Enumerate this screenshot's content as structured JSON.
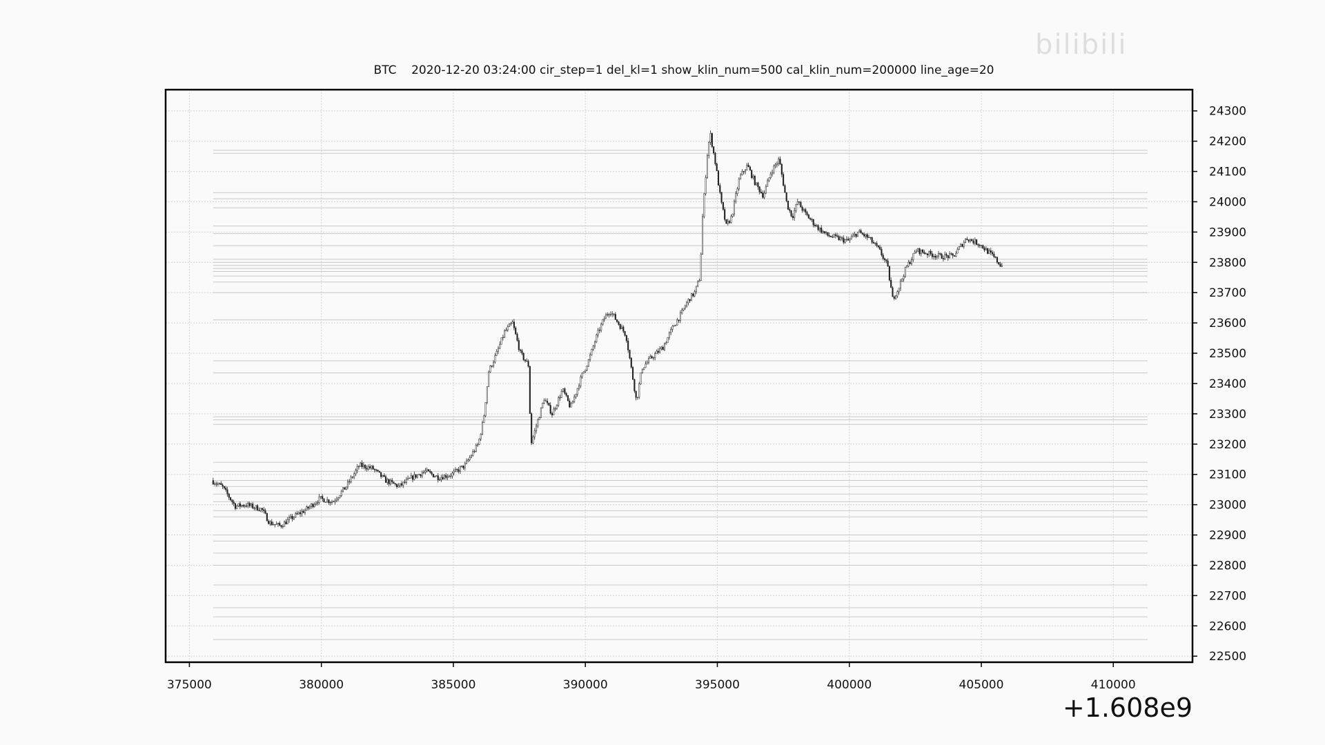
{
  "watermark": "bilibili",
  "chart_data": {
    "type": "candlestick",
    "title": "BTC    2020-12-20 03:24:00 cir_step=1 del_kl=1 show_klin_num=500 cal_klin_num=200000 line_age=20",
    "x_offset_label": "+1.608e9",
    "xlim": [
      374100,
      413000
    ],
    "ylim": [
      22480,
      24370
    ],
    "x_ticks": [
      375000,
      380000,
      385000,
      390000,
      395000,
      400000,
      405000,
      410000
    ],
    "y_ticks": [
      22500,
      22600,
      22700,
      22800,
      22900,
      23000,
      23100,
      23200,
      23300,
      23400,
      23500,
      23600,
      23700,
      23800,
      23900,
      24000,
      24100,
      24200,
      24300
    ],
    "grid": true,
    "y_axis_side": "right",
    "support_resistance_lines": {
      "x_range": [
        375900,
        411300
      ],
      "levels": [
        22555,
        22630,
        22660,
        22735,
        22800,
        22840,
        22880,
        22900,
        22960,
        22980,
        23010,
        23035,
        23060,
        23080,
        23110,
        23140,
        23265,
        23280,
        23290,
        23435,
        23475,
        23610,
        23700,
        23735,
        23755,
        23770,
        23780,
        23790,
        23800,
        23810,
        23855,
        23895,
        23920,
        23980,
        24010,
        24030,
        24160,
        24170
      ]
    },
    "price_path": {
      "x": [
        375900,
        376300,
        376800,
        377200,
        377800,
        378100,
        378500,
        379000,
        379500,
        380000,
        380500,
        381000,
        381500,
        382000,
        382500,
        383000,
        383500,
        384000,
        384500,
        385000,
        385500,
        386000,
        386200,
        386400,
        386700,
        387000,
        387300,
        387600,
        387900,
        388000,
        388200,
        388500,
        388800,
        389200,
        389500,
        389900,
        390200,
        390500,
        390800,
        391000,
        391300,
        391600,
        392000,
        392200,
        392500,
        393000,
        393400,
        393700,
        393800,
        394000,
        394200,
        394400,
        394500,
        394700,
        394800,
        395000,
        395200,
        395400,
        395600,
        395900,
        396200,
        396500,
        396800,
        397100,
        397400,
        397700,
        397900,
        398100,
        398400,
        398800,
        399200,
        399600,
        400000,
        400400,
        400800,
        401200,
        401500,
        401700,
        401900,
        402200,
        402600,
        403000,
        403500,
        404000,
        404500,
        405000,
        405500,
        405800
      ],
      "y": [
        23080,
        23060,
        22995,
        23000,
        22985,
        22940,
        22930,
        22960,
        22985,
        23020,
        23010,
        23060,
        23130,
        23120,
        23080,
        23060,
        23090,
        23110,
        23090,
        23100,
        23130,
        23200,
        23280,
        23440,
        23500,
        23570,
        23600,
        23500,
        23460,
        23200,
        23260,
        23350,
        23300,
        23380,
        23320,
        23420,
        23480,
        23560,
        23620,
        23640,
        23600,
        23560,
        23340,
        23450,
        23480,
        23520,
        23590,
        23630,
        23650,
        23680,
        23700,
        23750,
        23950,
        24180,
        24220,
        24120,
        24000,
        23920,
        23950,
        24080,
        24120,
        24060,
        24020,
        24100,
        24140,
        23990,
        23950,
        24000,
        23960,
        23920,
        23890,
        23880,
        23870,
        23900,
        23880,
        23840,
        23790,
        23680,
        23710,
        23780,
        23840,
        23830,
        23820,
        23820,
        23880,
        23860,
        23820,
        23790
      ]
    }
  }
}
